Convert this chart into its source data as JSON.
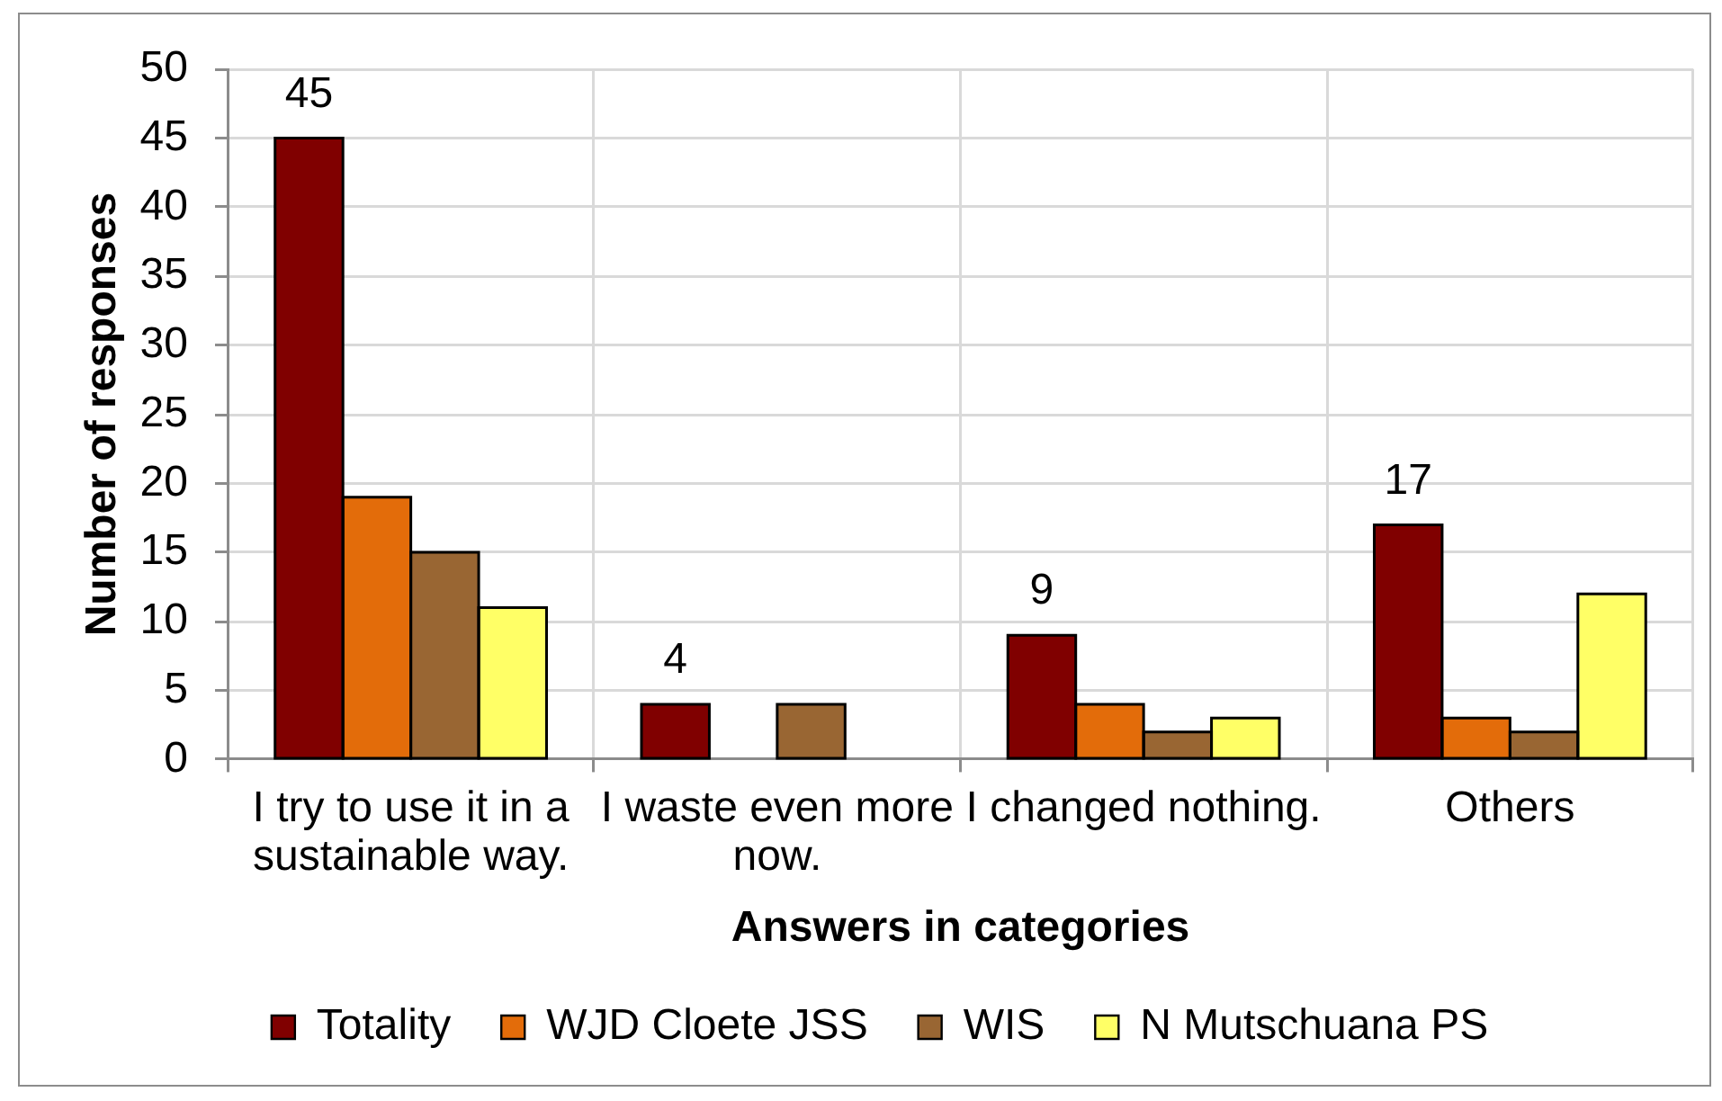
{
  "chart_data": {
    "type": "bar",
    "xlabel": "Answers in categories",
    "ylabel": "Number of responses",
    "categories": [
      "I try to use it in a sustainable way.",
      "I waste even more now.",
      "I changed nothing.",
      "Others"
    ],
    "series": [
      {
        "name": "Totality",
        "color": "#800000",
        "values": [
          45,
          4,
          9,
          17
        ],
        "value_labels": [
          "45",
          "4",
          "9",
          "17"
        ]
      },
      {
        "name": "WJD Cloete JSS",
        "color": "#e36c0a",
        "values": [
          19,
          0,
          4,
          3
        ]
      },
      {
        "name": "WIS",
        "color": "#996633",
        "values": [
          15,
          4,
          2,
          2
        ]
      },
      {
        "name": "N Mutschuana PS",
        "color": "#ffff66",
        "values": [
          11,
          0,
          3,
          12
        ]
      }
    ],
    "ylim": [
      0,
      50
    ],
    "yticks": [
      0,
      5,
      10,
      15,
      20,
      25,
      30,
      35,
      40,
      45,
      50
    ],
    "grid": true,
    "legend": "bottom"
  }
}
